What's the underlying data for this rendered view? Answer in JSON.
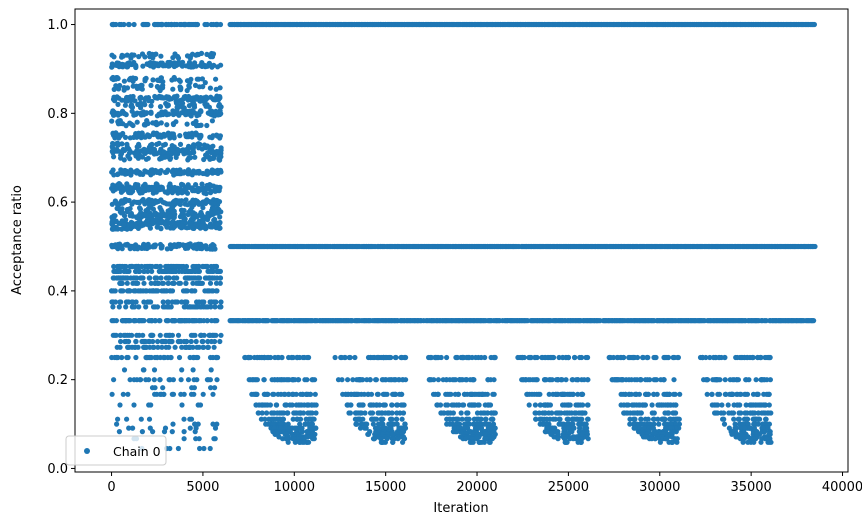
{
  "chart_data": {
    "type": "scatter",
    "title": "",
    "xlabel": "Iteration",
    "ylabel": "Acceptance ratio",
    "xlim": [
      -2000,
      40300
    ],
    "ylim": [
      -0.008,
      1.035
    ],
    "xticks": [
      0,
      5000,
      10000,
      15000,
      20000,
      25000,
      30000,
      35000,
      40000
    ],
    "yticks": [
      0.0,
      0.2,
      0.4,
      0.6,
      0.8,
      1.0
    ],
    "grid": false,
    "legend_position": "lower-left",
    "colors": {
      "series": "#1f77b4"
    },
    "series": [
      {
        "name": "Chain 0",
        "phases": [
          {
            "x_range": [
              0,
              6000
            ],
            "note_levels": [
              1.0,
              0.929,
              0.909,
              0.875,
              0.857,
              0.833,
              0.818,
              0.8,
              0.778,
              0.75,
              0.727,
              0.714,
              0.7,
              0.667,
              0.636,
              0.625,
              0.6,
              0.583,
              0.571,
              0.556,
              0.545,
              0.5,
              0.455,
              0.444,
              0.429,
              0.417,
              0.4,
              0.375,
              0.364,
              0.333,
              0.3,
              0.286,
              0.273,
              0.25,
              0.222,
              0.2,
              0.182,
              0.167,
              0.143,
              0.111,
              0.1,
              0.091,
              0.083,
              0.067,
              0.045
            ]
          },
          {
            "x_range": [
              6000,
              38500
            ],
            "note_levels": [
              1.0,
              0.5,
              0.333,
              0.25,
              0.2,
              0.167,
              0.143,
              0.125,
              0.111,
              0.1,
              0.091,
              0.083,
              0.077,
              0.071,
              0.067,
              0.059
            ]
          }
        ],
        "cycles": [
          {
            "x_range": [
              7000,
              11200
            ]
          },
          {
            "x_range": [
              12000,
              16100
            ]
          },
          {
            "x_range": [
              17000,
              21000
            ]
          },
          {
            "x_range": [
              22000,
              26100
            ]
          },
          {
            "x_range": [
              27000,
              31100
            ]
          },
          {
            "x_range": [
              32000,
              36100
            ]
          }
        ]
      }
    ]
  }
}
